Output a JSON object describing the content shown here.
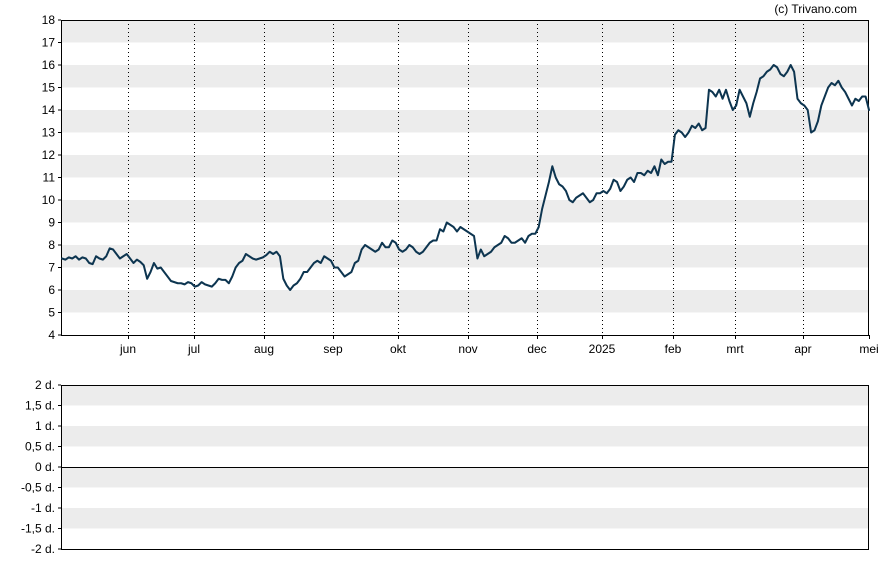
{
  "credit": "(c) Trivano.com",
  "chart_data": [
    {
      "type": "line",
      "series": [
        {
          "color": "#0d3550",
          "values": [
            7.4,
            7.35,
            7.45,
            7.4,
            7.5,
            7.35,
            7.45,
            7.4,
            7.2,
            7.15,
            7.5,
            7.4,
            7.35,
            7.5,
            7.85,
            7.8,
            7.6,
            7.4,
            7.5,
            7.6,
            7.4,
            7.2,
            7.35,
            7.25,
            7.1,
            6.5,
            6.8,
            7.2,
            6.95,
            7.0,
            6.8,
            6.6,
            6.4,
            6.35,
            6.3,
            6.3,
            6.25,
            6.35,
            6.3,
            6.15,
            6.2,
            6.35,
            6.25,
            6.2,
            6.15,
            6.3,
            6.5,
            6.45,
            6.45,
            6.3,
            6.6,
            7.0,
            7.2,
            7.3,
            7.6,
            7.5,
            7.4,
            7.35,
            7.4,
            7.45,
            7.55,
            7.7,
            7.6,
            7.7,
            7.5,
            6.5,
            6.2,
            6.0,
            6.2,
            6.3,
            6.5,
            6.8,
            6.8,
            7.0,
            7.2,
            7.3,
            7.2,
            7.5,
            7.4,
            7.3,
            7.0,
            7.0,
            6.8,
            6.6,
            6.7,
            6.8,
            7.2,
            7.3,
            7.8,
            8.0,
            7.9,
            7.8,
            7.7,
            7.8,
            8.1,
            7.9,
            7.9,
            8.2,
            8.1,
            7.8,
            7.7,
            7.8,
            8.0,
            7.9,
            7.7,
            7.6,
            7.7,
            7.9,
            8.1,
            8.2,
            8.2,
            8.7,
            8.6,
            9.0,
            8.9,
            8.8,
            8.6,
            8.8,
            8.7,
            8.6,
            8.5,
            8.4,
            7.4,
            7.8,
            7.5,
            7.6,
            7.7,
            7.9,
            8.0,
            8.1,
            8.4,
            8.3,
            8.1,
            8.1,
            8.2,
            8.3,
            8.1,
            8.4,
            8.5,
            8.5,
            8.8,
            9.6,
            10.2,
            10.8,
            11.5,
            11.0,
            10.7,
            10.6,
            10.4,
            10.0,
            9.9,
            10.1,
            10.2,
            10.3,
            10.1,
            9.9,
            10.0,
            10.3,
            10.3,
            10.4,
            10.3,
            10.5,
            10.9,
            10.8,
            10.4,
            10.6,
            10.9,
            11.0,
            10.8,
            11.2,
            11.2,
            11.1,
            11.3,
            11.2,
            11.5,
            11.1,
            11.8,
            11.6,
            11.7,
            11.7,
            12.9,
            13.1,
            13.0,
            12.8,
            13.0,
            13.3,
            13.2,
            13.4,
            13.1,
            13.2,
            14.9,
            14.8,
            14.6,
            14.9,
            14.5,
            14.9,
            14.4,
            14.0,
            14.2,
            14.9,
            14.6,
            14.3,
            13.7,
            14.3,
            14.8,
            15.4,
            15.5,
            15.7,
            15.8,
            16.0,
            15.9,
            15.6,
            15.5,
            15.7,
            16.0,
            15.7,
            14.5,
            14.3,
            14.2,
            14.0,
            13.0,
            13.1,
            13.5,
            14.2,
            14.6,
            15.0,
            15.2,
            15.1,
            15.3,
            15.0,
            14.8,
            14.5,
            14.2,
            14.5,
            14.4,
            14.6,
            14.6,
            14.0
          ]
        }
      ],
      "xaxis": {
        "tick_labels": [
          "jun",
          "jul",
          "aug",
          "sep",
          "okt",
          "nov",
          "dec",
          "2025",
          "feb",
          "mrt",
          "apr",
          "mei"
        ]
      },
      "yaxis": {
        "range": [
          4,
          18
        ],
        "tick_labels": [
          "18",
          "17",
          "16",
          "15",
          "14",
          "13",
          "12",
          "11",
          "10",
          "9",
          "8",
          "7",
          "6",
          "5",
          "4"
        ]
      },
      "grid": true
    },
    {
      "type": "line",
      "series": [],
      "yaxis": {
        "range": [
          -2,
          2
        ],
        "tick_labels": [
          "2 d.",
          "1,5 d.",
          "1 d.",
          "0,5 d.",
          "0 d.",
          "-0,5 d.",
          "-1 d.",
          "-1,5 d.",
          "-2 d."
        ]
      },
      "grid": true
    }
  ]
}
